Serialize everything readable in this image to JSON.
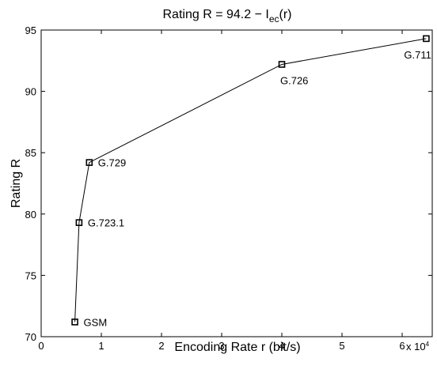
{
  "chart_data": {
    "type": "line",
    "title": {
      "prefix": "Rating R = 94.2 − I",
      "subscript": "ec",
      "suffix": "(r)"
    },
    "xlabel": "Encoding Rate r (bit/s)",
    "ylabel": "Rating R",
    "x_multiplier": {
      "base": "x 10",
      "exponent": "4"
    },
    "xlim": [
      0,
      65000
    ],
    "ylim": [
      70,
      95
    ],
    "xticks": [
      0,
      10000,
      20000,
      30000,
      40000,
      50000,
      60000
    ],
    "xtick_labels": [
      "0",
      "1",
      "2",
      "3",
      "4",
      "5",
      "6"
    ],
    "yticks": [
      70,
      75,
      80,
      85,
      90,
      95
    ],
    "ytick_labels": [
      "70",
      "75",
      "80",
      "85",
      "90",
      "95"
    ],
    "grid": false,
    "line_color": "#000000",
    "marker": "square",
    "points": [
      {
        "label": "GSM",
        "x": 5600,
        "y": 71.2,
        "label_side": "right"
      },
      {
        "label": "G.723.1",
        "x": 6300,
        "y": 79.3,
        "label_side": "right"
      },
      {
        "label": "G.729",
        "x": 8000,
        "y": 84.2,
        "label_side": "right"
      },
      {
        "label": "G.726",
        "x": 40000,
        "y": 92.2,
        "label_side": "below"
      },
      {
        "label": "G.711",
        "x": 64000,
        "y": 94.3,
        "label_side": "below-left"
      }
    ]
  }
}
